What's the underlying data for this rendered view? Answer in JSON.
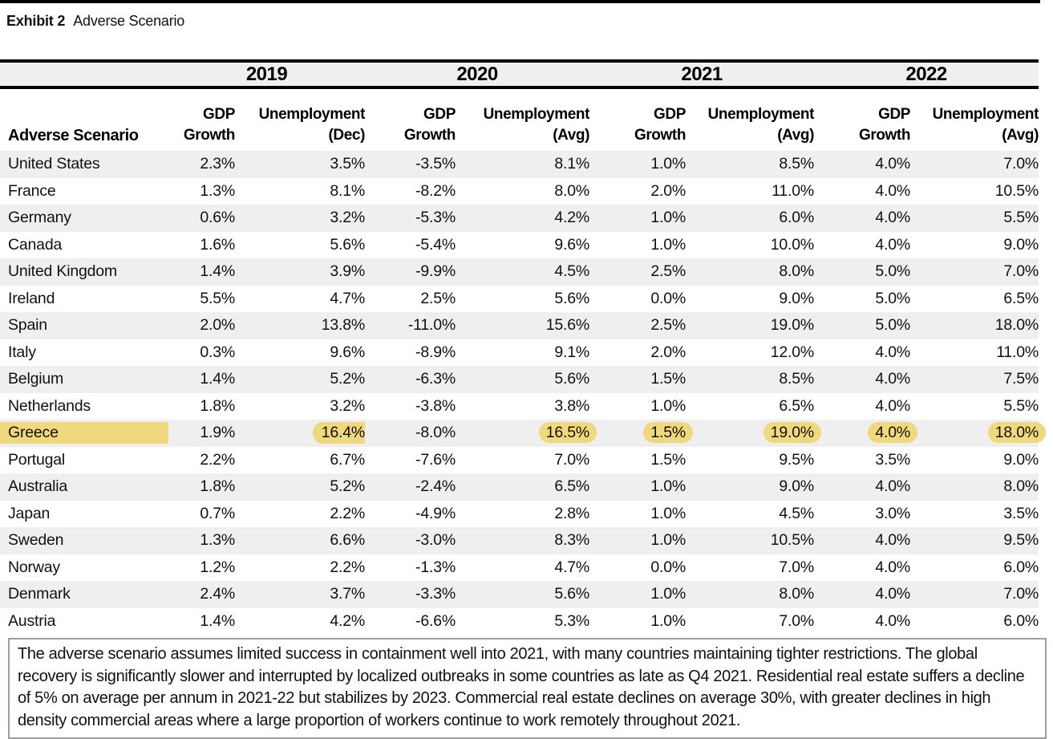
{
  "page": {
    "title_exhibit": "Exhibit 2",
    "title_name": "Adverse Scenario"
  },
  "colors": {
    "highlight": "#f0d87f",
    "stripe": "#efefef",
    "rule": "#000000"
  },
  "table": {
    "years": [
      "2019",
      "2020",
      "2021",
      "2022"
    ],
    "scenario_header": "Adverse Scenario",
    "subheaders": [
      {
        "line1": "GDP",
        "line2": "Growth"
      },
      {
        "line1": "Unemployment",
        "line2": "(Dec)"
      },
      {
        "line1": "GDP",
        "line2": "Growth"
      },
      {
        "line1": "Unemployment",
        "line2": "(Avg)"
      },
      {
        "line1": "GDP",
        "line2": "Growth"
      },
      {
        "line1": "Unemployment",
        "line2": "(Avg)"
      },
      {
        "line1": "GDP",
        "line2": "Growth"
      },
      {
        "line1": "Unemployment",
        "line2": "(Avg)"
      }
    ],
    "rows": [
      {
        "country": "United States",
        "values": [
          "2.3%",
          "3.5%",
          "-3.5%",
          "8.1%",
          "1.0%",
          "8.5%",
          "4.0%",
          "7.0%"
        ],
        "highlight": false
      },
      {
        "country": "France",
        "values": [
          "1.3%",
          "8.1%",
          "-8.2%",
          "8.0%",
          "2.0%",
          "11.0%",
          "4.0%",
          "10.5%"
        ],
        "highlight": false
      },
      {
        "country": "Germany",
        "values": [
          "0.6%",
          "3.2%",
          "-5.3%",
          "4.2%",
          "1.0%",
          "6.0%",
          "4.0%",
          "5.5%"
        ],
        "highlight": false
      },
      {
        "country": "Canada",
        "values": [
          "1.6%",
          "5.6%",
          "-5.4%",
          "9.6%",
          "1.0%",
          "10.0%",
          "4.0%",
          "9.0%"
        ],
        "highlight": false
      },
      {
        "country": "United Kingdom",
        "values": [
          "1.4%",
          "3.9%",
          "-9.9%",
          "4.5%",
          "2.5%",
          "8.0%",
          "5.0%",
          "7.0%"
        ],
        "highlight": false
      },
      {
        "country": "Ireland",
        "values": [
          "5.5%",
          "4.7%",
          "2.5%",
          "5.6%",
          "0.0%",
          "9.0%",
          "5.0%",
          "6.5%"
        ],
        "highlight": false
      },
      {
        "country": "Spain",
        "values": [
          "2.0%",
          "13.8%",
          "-11.0%",
          "15.6%",
          "2.5%",
          "19.0%",
          "5.0%",
          "18.0%"
        ],
        "highlight": false
      },
      {
        "country": "Italy",
        "values": [
          "0.3%",
          "9.6%",
          "-8.9%",
          "9.1%",
          "2.0%",
          "12.0%",
          "4.0%",
          "11.0%"
        ],
        "highlight": false
      },
      {
        "country": "Belgium",
        "values": [
          "1.4%",
          "5.2%",
          "-6.3%",
          "5.6%",
          "1.5%",
          "8.5%",
          "4.0%",
          "7.5%"
        ],
        "highlight": false
      },
      {
        "country": "Netherlands",
        "values": [
          "1.8%",
          "3.2%",
          "-3.8%",
          "3.8%",
          "1.0%",
          "6.5%",
          "4.0%",
          "5.5%"
        ],
        "highlight": false
      },
      {
        "country": "Greece",
        "values": [
          "1.9%",
          "16.4%",
          "-8.0%",
          "16.5%",
          "1.5%",
          "19.0%",
          "4.0%",
          "18.0%"
        ],
        "highlight": true
      },
      {
        "country": "Portugal",
        "values": [
          "2.2%",
          "6.7%",
          "-7.6%",
          "7.0%",
          "1.5%",
          "9.5%",
          "3.5%",
          "9.0%"
        ],
        "highlight": false
      },
      {
        "country": "Australia",
        "values": [
          "1.8%",
          "5.2%",
          "-2.4%",
          "6.5%",
          "1.0%",
          "9.0%",
          "4.0%",
          "8.0%"
        ],
        "highlight": false
      },
      {
        "country": "Japan",
        "values": [
          "0.7%",
          "2.2%",
          "-4.9%",
          "2.8%",
          "1.0%",
          "4.5%",
          "3.0%",
          "3.5%"
        ],
        "highlight": false
      },
      {
        "country": "Sweden",
        "values": [
          "1.3%",
          "6.6%",
          "-3.0%",
          "8.3%",
          "1.0%",
          "10.5%",
          "4.0%",
          "9.5%"
        ],
        "highlight": false
      },
      {
        "country": "Norway",
        "values": [
          "1.2%",
          "2.2%",
          "-1.3%",
          "4.7%",
          "0.0%",
          "7.0%",
          "4.0%",
          "6.0%"
        ],
        "highlight": false
      },
      {
        "country": "Denmark",
        "values": [
          "2.4%",
          "3.7%",
          "-3.3%",
          "5.6%",
          "1.0%",
          "8.0%",
          "4.0%",
          "7.0%"
        ],
        "highlight": false
      },
      {
        "country": "Austria",
        "values": [
          "1.4%",
          "4.2%",
          "-6.6%",
          "5.3%",
          "1.0%",
          "7.0%",
          "4.0%",
          "6.0%"
        ],
        "highlight": false
      }
    ]
  },
  "footnote": {
    "text": "The adverse scenario assumes limited success in containment well into 2021, with many countries maintaining tighter restrictions. The global recovery is significantly slower and interrupted by localized outbreaks in some countries as late as Q4 2021. Residential real estate suffers a decline of 5% on average per annum in 2021-22 but stabilizes by 2023. Commercial real estate declines on average 30%, with greater declines in high density commercial areas where a large proportion of workers continue to work remotely throughout 2021."
  }
}
